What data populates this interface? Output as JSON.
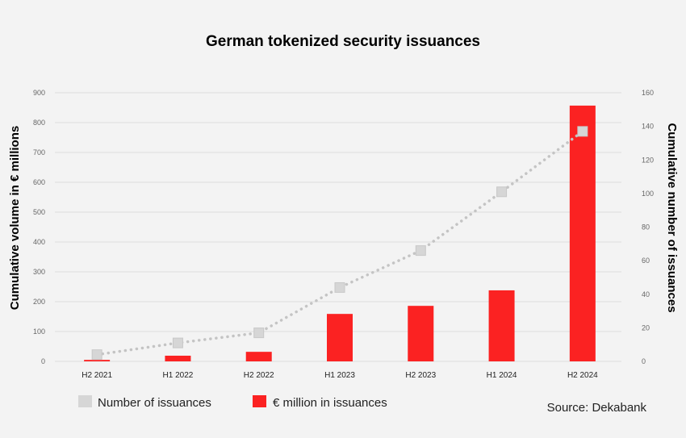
{
  "chart_data": {
    "type": "bar",
    "title": "German tokenized security issuances",
    "categories": [
      "H2 2021",
      "H1 2022",
      "H2 2022",
      "H1 2023",
      "H2 2023",
      "H1 2024",
      "H2 2024"
    ],
    "series": [
      {
        "name": "€ million in issuances",
        "type": "bar",
        "axis": "left",
        "color": "#fb2222",
        "values": [
          5,
          19,
          32,
          159,
          186,
          238,
          857
        ]
      },
      {
        "name": "Number of issuances",
        "type": "line",
        "axis": "right",
        "color": "#d6d6d6",
        "line_color": "#c4c4c4",
        "line_style": "dotted",
        "values": [
          4,
          11,
          17,
          44,
          66,
          101,
          137
        ]
      }
    ],
    "ylabel": "Cumulative volume in € millions",
    "ylabel_right": "Cumulative number of issuances",
    "ylim": [
      0,
      900
    ],
    "ylim_right": [
      0,
      160
    ],
    "yticks": [
      0,
      100,
      200,
      300,
      400,
      500,
      600,
      700,
      800,
      900
    ],
    "yticks_right": [
      0,
      20,
      40,
      60,
      80,
      100,
      120,
      140,
      160
    ],
    "grid": true,
    "legend": [
      "Number of issuances",
      "€ million in issuances"
    ],
    "legend_position": "bottom-left",
    "source": "Source: Dekabank"
  }
}
